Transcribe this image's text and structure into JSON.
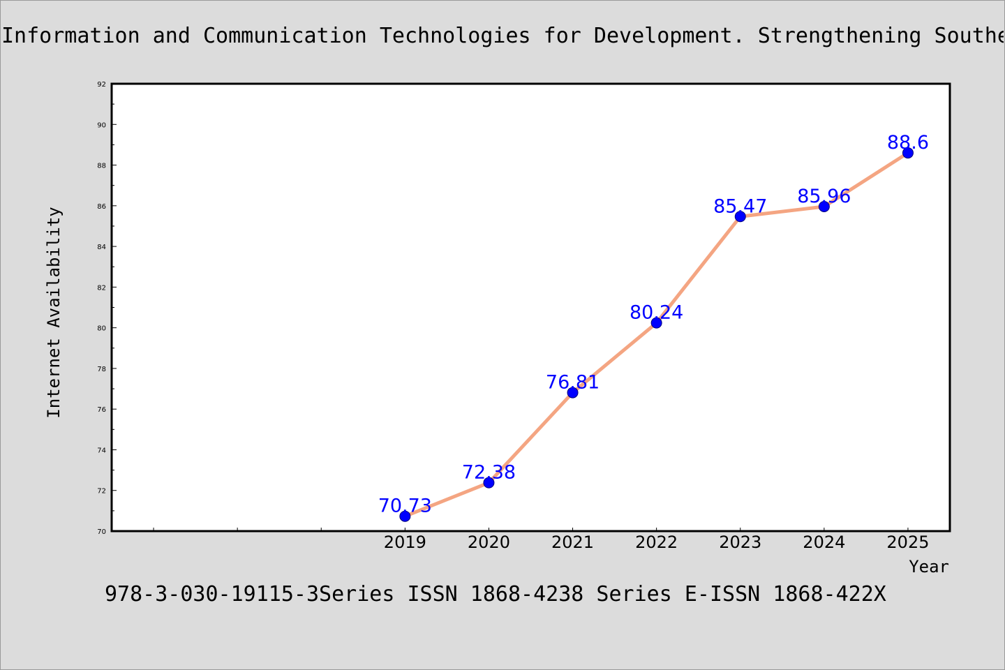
{
  "title": "Information and Communication Technologies for Development. Strengthening Southe",
  "footer": "978-3-030-19115-3Series ISSN 1868-4238 Series E-ISSN 1868-422X",
  "chart_data": {
    "type": "line",
    "title": "Information and Communication Technologies for Development. Strengthening Southe",
    "xlabel": "Year",
    "ylabel": "Internet Availability",
    "categories": [
      "2019",
      "2020",
      "2021",
      "2022",
      "2023",
      "2024",
      "2025"
    ],
    "x": [
      2019,
      2020,
      2021,
      2022,
      2023,
      2024,
      2025
    ],
    "values": [
      70.73,
      72.38,
      76.81,
      80.24,
      85.47,
      85.96,
      88.6
    ],
    "data_labels": [
      "70.73",
      "72.38",
      "76.81",
      "80.24",
      "85.47",
      "85.96",
      "88.6"
    ],
    "ylim": [
      70,
      92
    ],
    "y_ticks": [
      70,
      72,
      74,
      76,
      78,
      80,
      82,
      84,
      86,
      88,
      90,
      92
    ],
    "xlim": [
      2015.5,
      2025.5
    ],
    "grid": false,
    "legend": "none",
    "colors": {
      "line": "#f4a582",
      "marker": "#0000ff",
      "data_label": "#0000ff",
      "background": "#dcdcdc",
      "plot_area": "#ffffff"
    }
  }
}
